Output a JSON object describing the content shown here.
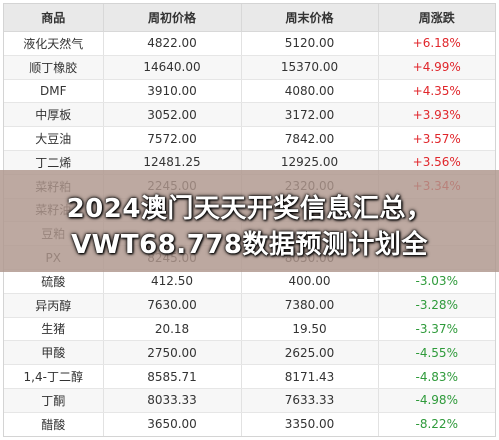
{
  "table": {
    "headers": [
      "商品",
      "周初价格",
      "周末价格",
      "周涨跌"
    ],
    "rows": [
      {
        "name": "液化天然气",
        "open": "4822.00",
        "close": "5120.00",
        "change": "+6.18%",
        "dir": "pos"
      },
      {
        "name": "顺丁橡胶",
        "open": "14640.00",
        "close": "15370.00",
        "change": "+4.99%",
        "dir": "pos"
      },
      {
        "name": "DMF",
        "open": "3910.00",
        "close": "4080.00",
        "change": "+4.35%",
        "dir": "pos"
      },
      {
        "name": "中厚板",
        "open": "3052.00",
        "close": "3172.00",
        "change": "+3.93%",
        "dir": "pos"
      },
      {
        "name": "大豆油",
        "open": "7572.00",
        "close": "7842.00",
        "change": "+3.57%",
        "dir": "pos"
      },
      {
        "name": "丁二烯",
        "open": "12481.25",
        "close": "12925.00",
        "change": "+3.56%",
        "dir": "pos"
      },
      {
        "name": "菜籽粕",
        "open": "2245.00",
        "close": "2320.00",
        "change": "+3.34%",
        "dir": "pos"
      },
      {
        "name": "菜籽油",
        "open": "",
        "close": "",
        "change": "",
        "dir": "pos"
      },
      {
        "name": "豆粕",
        "open": "",
        "close": "",
        "change": "",
        "dir": "pos"
      },
      {
        "name": "PX",
        "open": "8245.00",
        "close": "8050.00",
        "change": "",
        "dir": "neg"
      },
      {
        "name": "硫酸",
        "open": "412.50",
        "close": "400.00",
        "change": "-3.03%",
        "dir": "neg"
      },
      {
        "name": "异丙醇",
        "open": "7630.00",
        "close": "7380.00",
        "change": "-3.28%",
        "dir": "neg"
      },
      {
        "name": "生猪",
        "open": "20.18",
        "close": "19.50",
        "change": "-3.37%",
        "dir": "neg"
      },
      {
        "name": "甲酸",
        "open": "2750.00",
        "close": "2625.00",
        "change": "-4.55%",
        "dir": "neg"
      },
      {
        "name": "1,4-丁二醇",
        "open": "8585.71",
        "close": "8171.43",
        "change": "-4.83%",
        "dir": "neg"
      },
      {
        "name": "丁酮",
        "open": "8033.33",
        "close": "7633.33",
        "change": "-4.98%",
        "dir": "neg"
      },
      {
        "name": "醋酸",
        "open": "3650.00",
        "close": "3350.00",
        "change": "-8.22%",
        "dir": "neg"
      }
    ]
  },
  "overlay": {
    "line1": "2024澳门天天开奖信息汇总，",
    "line2": "VWT68.778数据预测计划全"
  }
}
